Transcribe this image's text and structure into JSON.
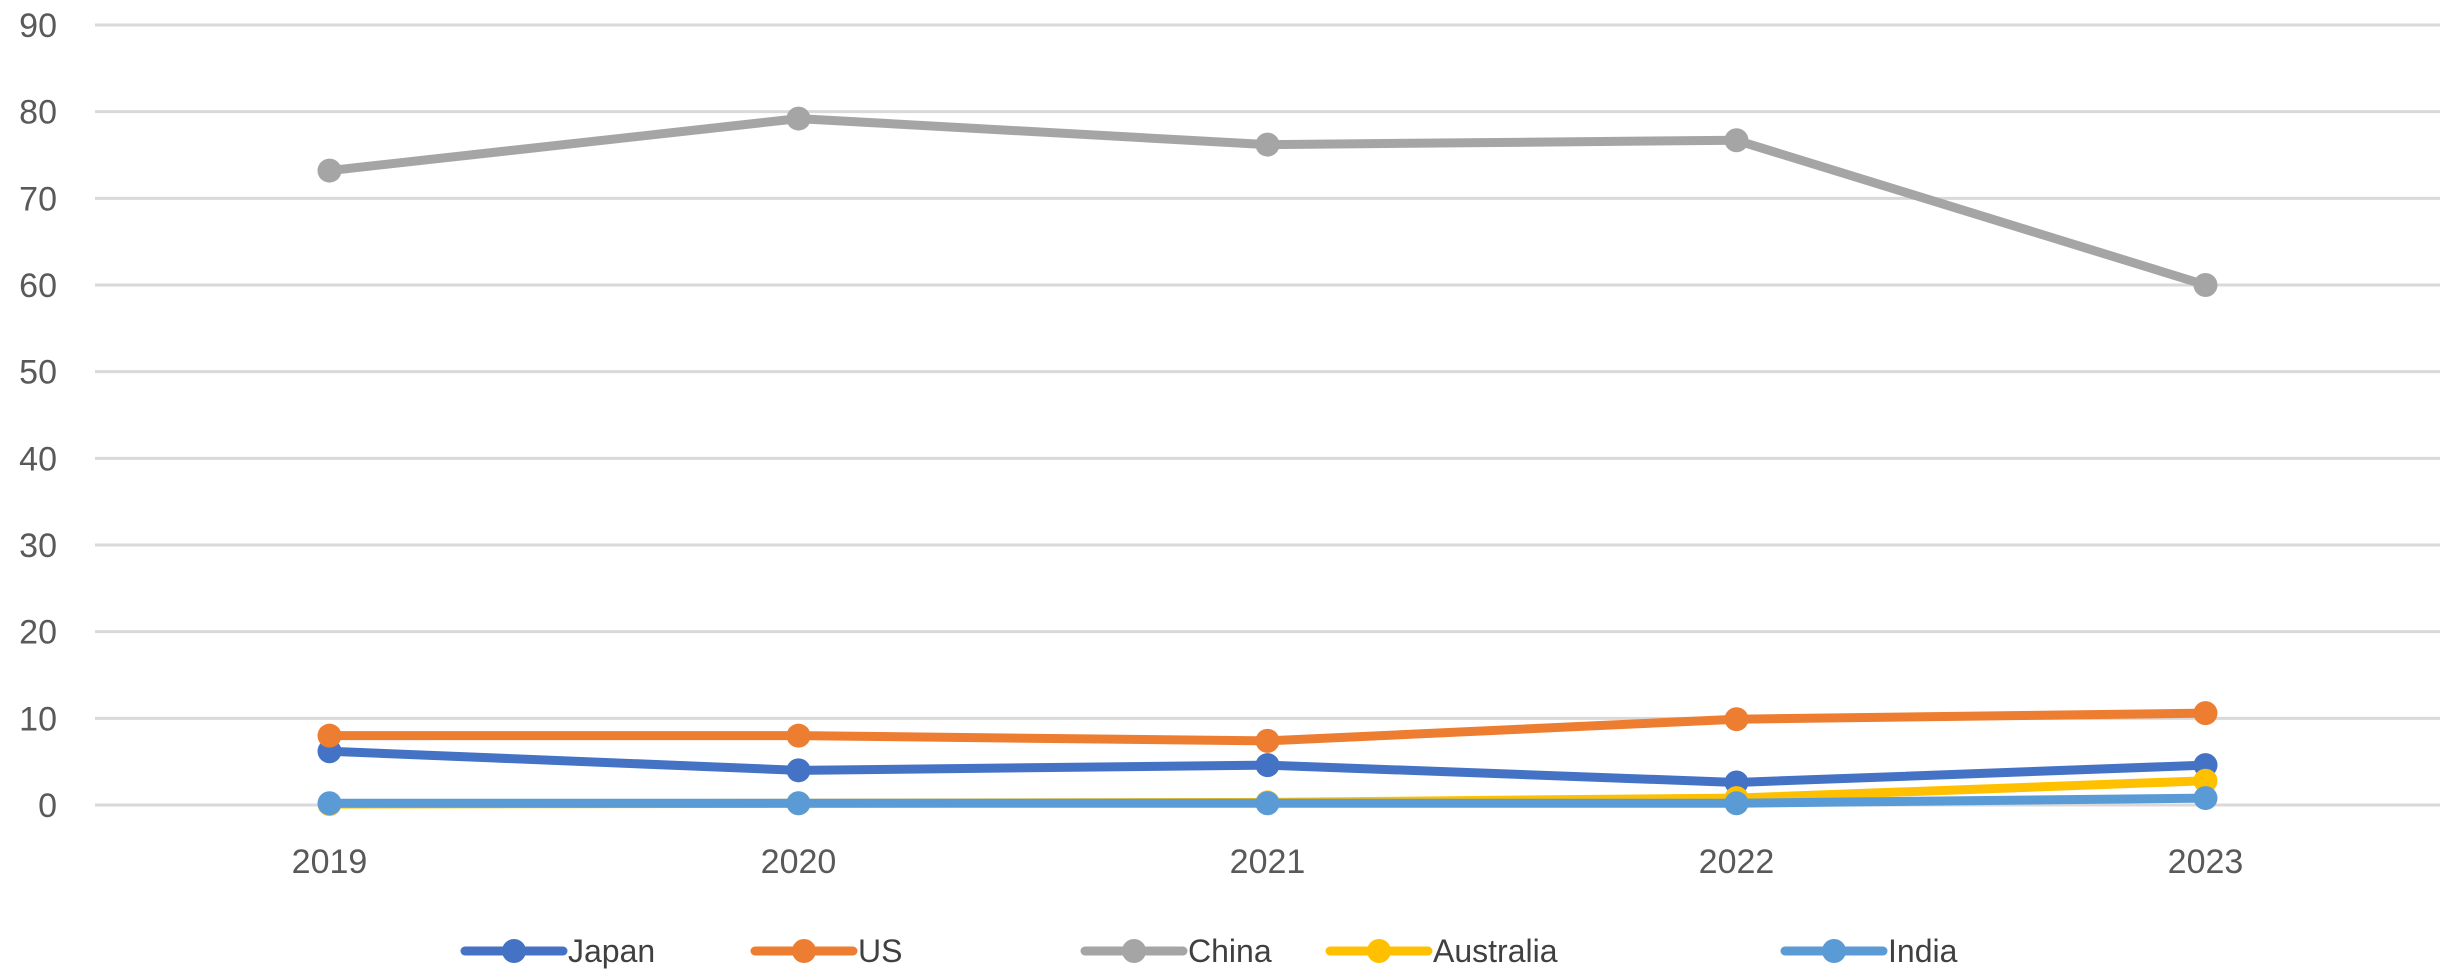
{
  "chart_data": {
    "type": "line",
    "title": "",
    "xlabel": "",
    "ylabel": "",
    "categories": [
      "2019",
      "2020",
      "2021",
      "2022",
      "2023"
    ],
    "ylim": [
      0,
      90
    ],
    "yticks": [
      "0",
      "10",
      "20",
      "30",
      "40",
      "50",
      "60",
      "70",
      "80",
      "90"
    ],
    "grid": true,
    "legend_position": "bottom",
    "series": [
      {
        "name": "Japan",
        "color": "#4472C4",
        "values": [
          6.2,
          4.0,
          4.6,
          2.6,
          4.6
        ]
      },
      {
        "name": "US",
        "color": "#ED7D31",
        "values": [
          8.0,
          8.0,
          7.4,
          9.9,
          10.6
        ]
      },
      {
        "name": "China",
        "color": "#A5A5A5",
        "values": [
          73.2,
          79.2,
          76.2,
          76.7,
          60.0
        ]
      },
      {
        "name": "Australia",
        "color": "#FFC000",
        "values": [
          0.1,
          0.2,
          0.3,
          0.8,
          2.8
        ]
      },
      {
        "name": "India",
        "color": "#5B9BD5",
        "values": [
          0.2,
          0.2,
          0.2,
          0.2,
          0.8
        ]
      }
    ]
  }
}
